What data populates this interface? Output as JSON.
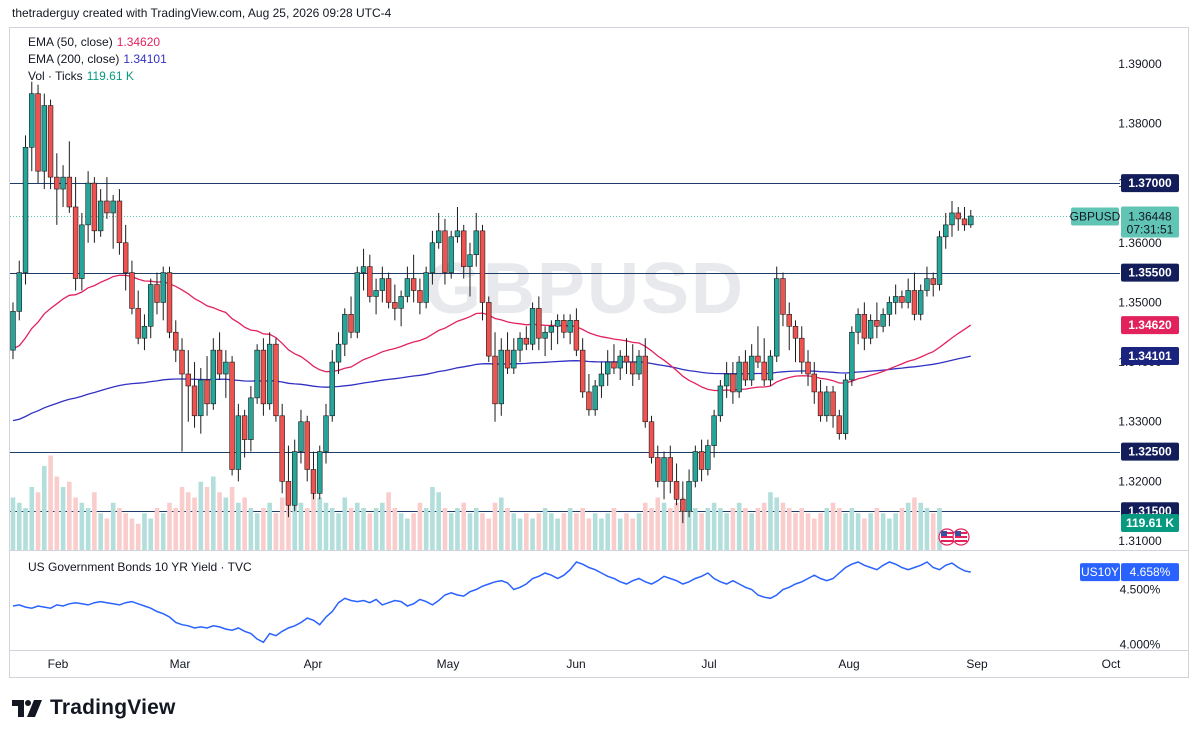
{
  "attribution": "thetraderguy created with TradingView.com, Aug 25, 2026 09:28 UTC-4",
  "watermark": "GBPUSD",
  "legend": {
    "ema50": {
      "label": "EMA (50, close)",
      "value": "1.34620",
      "color": "#e2225d"
    },
    "ema200": {
      "label": "EMA (200, close)",
      "value": "1.34101",
      "color": "#3131c4"
    },
    "vol": {
      "label": "Vol · Ticks",
      "value": "119.61 K",
      "color": "#089981"
    },
    "sub": {
      "label": "US Government Bonds 10 YR Yield · TVC"
    }
  },
  "badges": {
    "symbol": "GBPUSD",
    "last_price": "1.36448",
    "countdown": "07:31:51",
    "ema50": "1.34620",
    "ema200": "1.34101",
    "volume": "119.61 K",
    "us10y_symbol": "US10Y",
    "us10y_value": "4.658%"
  },
  "footer": {
    "brand": "TradingView"
  },
  "colors": {
    "up": "#26a69a",
    "down": "#ef5350",
    "up_vol": "#b2dfdb",
    "down_vol": "#facdcd",
    "ema50": "#e2225d",
    "ema200": "#3131c4",
    "yield": "#2962ff",
    "hline": "#1e3d6b",
    "badge_dark": "#131d5a",
    "badge_ema50": "#e2225d",
    "badge_ema200": "#1a237e",
    "badge_green": "#089981",
    "badge_price": "#60c5b5",
    "badge_us10y": "#2962ff"
  },
  "chart_data": [
    {
      "type": "candlestick",
      "symbol": "GBPUSD",
      "price_axis_ticks": [
        "1.39000",
        "1.38000",
        "1.37000",
        "1.36000",
        "1.35000",
        "1.34000",
        "1.33000",
        "1.32000",
        "1.31000"
      ],
      "ylim": [
        1.3085,
        1.396
      ],
      "x_ticks": [
        "Feb",
        "Mar",
        "Apr",
        "May",
        "Jun",
        "Jul",
        "Aug",
        "Sep",
        "Oct"
      ],
      "horizontal_levels": [
        "1.37000",
        "1.35500",
        "1.32500",
        "1.31500"
      ],
      "last_price": 1.36448,
      "ema50_last": 1.3462,
      "ema200_last": 1.34101,
      "volume_last": "119.61 K",
      "candles": [
        [
          1.342,
          1.35,
          1.3405,
          1.3485
        ],
        [
          1.3485,
          1.357,
          1.347,
          1.355
        ],
        [
          1.355,
          1.378,
          1.353,
          1.376
        ],
        [
          1.376,
          1.387,
          1.372,
          1.385
        ],
        [
          1.385,
          1.3865,
          1.37,
          1.372
        ],
        [
          1.372,
          1.385,
          1.369,
          1.383
        ],
        [
          1.383,
          1.384,
          1.369,
          1.371
        ],
        [
          1.371,
          1.375,
          1.363,
          1.369
        ],
        [
          1.369,
          1.373,
          1.366,
          1.371
        ],
        [
          1.371,
          1.377,
          1.365,
          1.366
        ],
        [
          1.366,
          1.371,
          1.352,
          1.354
        ],
        [
          1.354,
          1.365,
          1.352,
          1.363
        ],
        [
          1.363,
          1.372,
          1.36,
          1.37
        ],
        [
          1.37,
          1.371,
          1.36,
          1.362
        ],
        [
          1.362,
          1.369,
          1.361,
          1.367
        ],
        [
          1.367,
          1.371,
          1.364,
          1.365
        ],
        [
          1.365,
          1.368,
          1.359,
          1.367
        ],
        [
          1.367,
          1.369,
          1.358,
          1.36
        ],
        [
          1.36,
          1.363,
          1.352,
          1.355
        ],
        [
          1.355,
          1.357,
          1.348,
          1.349
        ],
        [
          1.349,
          1.352,
          1.343,
          1.344
        ],
        [
          1.344,
          1.348,
          1.342,
          1.346
        ],
        [
          1.346,
          1.354,
          1.344,
          1.353
        ],
        [
          1.353,
          1.355,
          1.348,
          1.35
        ],
        [
          1.35,
          1.356,
          1.347,
          1.355
        ],
        [
          1.355,
          1.356,
          1.344,
          1.345
        ],
        [
          1.345,
          1.347,
          1.34,
          1.342
        ],
        [
          1.342,
          1.344,
          1.325,
          1.338
        ],
        [
          1.338,
          1.342,
          1.33,
          1.336
        ],
        [
          1.336,
          1.34,
          1.329,
          1.331
        ],
        [
          1.331,
          1.339,
          1.328,
          1.337
        ],
        [
          1.337,
          1.341,
          1.331,
          1.333
        ],
        [
          1.333,
          1.344,
          1.332,
          1.342
        ],
        [
          1.342,
          1.345,
          1.337,
          1.338
        ],
        [
          1.338,
          1.342,
          1.334,
          1.34
        ],
        [
          1.34,
          1.341,
          1.321,
          1.322
        ],
        [
          1.322,
          1.333,
          1.32,
          1.331
        ],
        [
          1.331,
          1.332,
          1.324,
          1.327
        ],
        [
          1.327,
          1.336,
          1.325,
          1.334
        ],
        [
          1.334,
          1.343,
          1.333,
          1.342
        ],
        [
          1.342,
          1.344,
          1.331,
          1.333
        ],
        [
          1.333,
          1.345,
          1.332,
          1.343
        ],
        [
          1.343,
          1.344,
          1.33,
          1.331
        ],
        [
          1.331,
          1.333,
          1.318,
          1.32
        ],
        [
          1.32,
          1.326,
          1.314,
          1.316
        ],
        [
          1.316,
          1.327,
          1.315,
          1.325
        ],
        [
          1.325,
          1.332,
          1.323,
          1.33
        ],
        [
          1.33,
          1.331,
          1.32,
          1.322
        ],
        [
          1.322,
          1.325,
          1.317,
          1.318
        ],
        [
          1.318,
          1.326,
          1.317,
          1.325
        ],
        [
          1.325,
          1.333,
          1.323,
          1.331
        ],
        [
          1.331,
          1.342,
          1.33,
          1.34
        ],
        [
          1.34,
          1.345,
          1.338,
          1.343
        ],
        [
          1.343,
          1.349,
          1.341,
          1.348
        ],
        [
          1.348,
          1.351,
          1.344,
          1.345
        ],
        [
          1.345,
          1.356,
          1.344,
          1.355
        ],
        [
          1.355,
          1.359,
          1.352,
          1.356
        ],
        [
          1.356,
          1.358,
          1.35,
          1.351
        ],
        [
          1.351,
          1.354,
          1.348,
          1.352
        ],
        [
          1.352,
          1.356,
          1.35,
          1.354
        ],
        [
          1.354,
          1.355,
          1.349,
          1.35
        ],
        [
          1.35,
          1.353,
          1.347,
          1.349
        ],
        [
          1.349,
          1.352,
          1.346,
          1.351
        ],
        [
          1.351,
          1.356,
          1.35,
          1.354
        ],
        [
          1.354,
          1.358,
          1.35,
          1.352
        ],
        [
          1.352,
          1.354,
          1.348,
          1.35
        ],
        [
          1.35,
          1.356,
          1.349,
          1.355
        ],
        [
          1.355,
          1.362,
          1.353,
          1.36
        ],
        [
          1.36,
          1.365,
          1.359,
          1.362
        ],
        [
          1.362,
          1.364,
          1.353,
          1.355
        ],
        [
          1.355,
          1.362,
          1.354,
          1.361
        ],
        [
          1.361,
          1.366,
          1.36,
          1.362
        ],
        [
          1.362,
          1.363,
          1.354,
          1.356
        ],
        [
          1.356,
          1.36,
          1.351,
          1.358
        ],
        [
          1.358,
          1.365,
          1.356,
          1.362
        ],
        [
          1.362,
          1.363,
          1.347,
          1.35
        ],
        [
          1.35,
          1.351,
          1.34,
          1.341
        ],
        [
          1.341,
          1.345,
          1.33,
          1.333
        ],
        [
          1.333,
          1.344,
          1.331,
          1.342
        ],
        [
          1.342,
          1.345,
          1.338,
          1.339
        ],
        [
          1.339,
          1.344,
          1.338,
          1.342
        ],
        [
          1.342,
          1.345,
          1.34,
          1.344
        ],
        [
          1.344,
          1.346,
          1.342,
          1.343
        ],
        [
          1.343,
          1.35,
          1.342,
          1.349
        ],
        [
          1.349,
          1.351,
          1.342,
          1.344
        ],
        [
          1.344,
          1.346,
          1.341,
          1.345
        ],
        [
          1.345,
          1.347,
          1.342,
          1.346
        ],
        [
          1.346,
          1.348,
          1.343,
          1.347
        ],
        [
          1.347,
          1.348,
          1.344,
          1.345
        ],
        [
          1.345,
          1.348,
          1.343,
          1.347
        ],
        [
          1.347,
          1.349,
          1.341,
          1.342
        ],
        [
          1.342,
          1.344,
          1.334,
          1.335
        ],
        [
          1.335,
          1.338,
          1.331,
          1.332
        ],
        [
          1.332,
          1.337,
          1.331,
          1.336
        ],
        [
          1.336,
          1.34,
          1.334,
          1.338
        ],
        [
          1.338,
          1.342,
          1.336,
          1.34
        ],
        [
          1.34,
          1.343,
          1.338,
          1.339
        ],
        [
          1.339,
          1.342,
          1.337,
          1.341
        ],
        [
          1.341,
          1.344,
          1.338,
          1.34
        ],
        [
          1.34,
          1.343,
          1.336,
          1.338
        ],
        [
          1.338,
          1.342,
          1.337,
          1.341
        ],
        [
          1.341,
          1.344,
          1.329,
          1.33
        ],
        [
          1.33,
          1.331,
          1.323,
          1.324
        ],
        [
          1.324,
          1.326,
          1.319,
          1.32
        ],
        [
          1.32,
          1.325,
          1.317,
          1.324
        ],
        [
          1.324,
          1.326,
          1.318,
          1.32
        ],
        [
          1.32,
          1.323,
          1.316,
          1.317
        ],
        [
          1.317,
          1.32,
          1.313,
          1.315
        ],
        [
          1.315,
          1.322,
          1.314,
          1.32
        ],
        [
          1.32,
          1.326,
          1.319,
          1.325
        ],
        [
          1.325,
          1.327,
          1.32,
          1.322
        ],
        [
          1.322,
          1.327,
          1.321,
          1.326
        ],
        [
          1.326,
          1.332,
          1.324,
          1.331
        ],
        [
          1.331,
          1.337,
          1.33,
          1.336
        ],
        [
          1.336,
          1.34,
          1.334,
          1.338
        ],
        [
          1.338,
          1.34,
          1.333,
          1.335
        ],
        [
          1.335,
          1.341,
          1.334,
          1.34
        ],
        [
          1.34,
          1.342,
          1.336,
          1.337
        ],
        [
          1.337,
          1.343,
          1.336,
          1.341
        ],
        [
          1.341,
          1.346,
          1.339,
          1.34
        ],
        [
          1.34,
          1.344,
          1.336,
          1.337
        ],
        [
          1.337,
          1.342,
          1.336,
          1.341
        ],
        [
          1.341,
          1.356,
          1.34,
          1.354
        ],
        [
          1.354,
          1.355,
          1.346,
          1.348
        ],
        [
          1.348,
          1.35,
          1.342,
          1.346
        ],
        [
          1.346,
          1.347,
          1.34,
          1.344
        ],
        [
          1.344,
          1.346,
          1.338,
          1.34
        ],
        [
          1.34,
          1.342,
          1.336,
          1.338
        ],
        [
          1.338,
          1.34,
          1.333,
          1.335
        ],
        [
          1.335,
          1.337,
          1.33,
          1.331
        ],
        [
          1.331,
          1.336,
          1.33,
          1.335
        ],
        [
          1.335,
          1.336,
          1.329,
          1.331
        ],
        [
          1.331,
          1.332,
          1.327,
          1.328
        ],
        [
          1.328,
          1.338,
          1.327,
          1.337
        ],
        [
          1.337,
          1.346,
          1.336,
          1.345
        ],
        [
          1.345,
          1.349,
          1.343,
          1.348
        ],
        [
          1.348,
          1.35,
          1.342,
          1.344
        ],
        [
          1.344,
          1.348,
          1.343,
          1.347
        ],
        [
          1.347,
          1.35,
          1.344,
          1.346
        ],
        [
          1.346,
          1.349,
          1.345,
          1.348
        ],
        [
          1.348,
          1.351,
          1.346,
          1.35
        ],
        [
          1.35,
          1.353,
          1.348,
          1.351
        ],
        [
          1.351,
          1.352,
          1.349,
          1.35
        ],
        [
          1.35,
          1.354,
          1.349,
          1.352
        ],
        [
          1.352,
          1.355,
          1.347,
          1.348
        ],
        [
          1.348,
          1.353,
          1.347,
          1.352
        ],
        [
          1.352,
          1.356,
          1.351,
          1.354
        ],
        [
          1.354,
          1.355,
          1.351,
          1.353
        ],
        [
          1.353,
          1.362,
          1.352,
          1.361
        ],
        [
          1.361,
          1.365,
          1.359,
          1.363
        ],
        [
          1.363,
          1.367,
          1.361,
          1.365
        ],
        [
          1.365,
          1.366,
          1.362,
          1.364
        ],
        [
          1.364,
          1.366,
          1.362,
          1.363
        ],
        [
          1.363,
          1.3655,
          1.3625,
          1.36448
        ]
      ],
      "volume": [
        0.5,
        0.45,
        0.4,
        0.6,
        0.55,
        0.8,
        0.9,
        0.7,
        0.6,
        0.65,
        0.5,
        0.45,
        0.4,
        0.55,
        0.35,
        0.3,
        0.45,
        0.4,
        0.35,
        0.3,
        0.25,
        0.35,
        0.3,
        0.4,
        0.35,
        0.45,
        0.4,
        0.6,
        0.55,
        0.5,
        0.65,
        0.6,
        0.7,
        0.55,
        0.5,
        0.6,
        0.45,
        0.5,
        0.4,
        0.35,
        0.4,
        0.45,
        0.35,
        0.5,
        0.6,
        0.55,
        0.45,
        0.4,
        0.6,
        0.5,
        0.45,
        0.4,
        0.35,
        0.5,
        0.4,
        0.45,
        0.4,
        0.35,
        0.4,
        0.45,
        0.55,
        0.4,
        0.35,
        0.3,
        0.35,
        0.45,
        0.4,
        0.6,
        0.55,
        0.4,
        0.35,
        0.4,
        0.45,
        0.35,
        0.4,
        0.35,
        0.3,
        0.45,
        0.5,
        0.4,
        0.35,
        0.3,
        0.35,
        0.3,
        0.35,
        0.4,
        0.35,
        0.3,
        0.35,
        0.4,
        0.35,
        0.4,
        0.3,
        0.35,
        0.3,
        0.35,
        0.4,
        0.3,
        0.35,
        0.3,
        0.35,
        0.45,
        0.4,
        0.5,
        0.45,
        0.4,
        0.45,
        0.5,
        0.55,
        0.4,
        0.35,
        0.4,
        0.45,
        0.4,
        0.35,
        0.4,
        0.45,
        0.4,
        0.35,
        0.4,
        0.45,
        0.55,
        0.5,
        0.45,
        0.4,
        0.35,
        0.4,
        0.35,
        0.3,
        0.35,
        0.4,
        0.45,
        0.4,
        0.35,
        0.4,
        0.35,
        0.3,
        0.35,
        0.4,
        0.35,
        0.3,
        0.35,
        0.4,
        0.45,
        0.5,
        0.45,
        0.4,
        0.35,
        0.4
      ]
    },
    {
      "type": "line",
      "title": "US Government Bonds 10 YR Yield · TVC",
      "symbol": "US10Y",
      "axis_ticks": [
        "4.500%",
        "4.000%"
      ],
      "last_value": 4.658,
      "values": [
        4.35,
        4.36,
        4.34,
        4.33,
        4.35,
        4.34,
        4.33,
        4.36,
        4.35,
        4.37,
        4.38,
        4.37,
        4.36,
        4.38,
        4.39,
        4.38,
        4.37,
        4.36,
        4.38,
        4.39,
        4.37,
        4.35,
        4.33,
        4.3,
        4.28,
        4.25,
        4.2,
        4.18,
        4.17,
        4.15,
        4.16,
        4.15,
        4.17,
        4.16,
        4.14,
        4.13,
        4.15,
        4.12,
        4.1,
        4.05,
        4.02,
        4.1,
        4.08,
        4.12,
        4.15,
        4.17,
        4.2,
        4.24,
        4.22,
        4.18,
        4.25,
        4.3,
        4.38,
        4.42,
        4.4,
        4.39,
        4.4,
        4.38,
        4.41,
        4.36,
        4.38,
        4.4,
        4.39,
        4.35,
        4.37,
        4.41,
        4.39,
        4.36,
        4.4,
        4.45,
        4.47,
        4.45,
        4.44,
        4.48,
        4.5,
        4.53,
        4.55,
        4.57,
        4.58,
        4.56,
        4.5,
        4.52,
        4.55,
        4.6,
        4.62,
        4.65,
        4.63,
        4.6,
        4.63,
        4.68,
        4.75,
        4.73,
        4.7,
        4.68,
        4.65,
        4.62,
        4.6,
        4.57,
        4.55,
        4.58,
        4.6,
        4.57,
        4.55,
        4.58,
        4.62,
        4.6,
        4.58,
        4.55,
        4.57,
        4.6,
        4.62,
        4.65,
        4.6,
        4.57,
        4.55,
        4.58,
        4.55,
        4.52,
        4.5,
        4.45,
        4.43,
        4.42,
        4.45,
        4.5,
        4.52,
        4.55,
        4.57,
        4.6,
        4.63,
        4.6,
        4.58,
        4.6,
        4.65,
        4.7,
        4.73,
        4.75,
        4.72,
        4.7,
        4.68,
        4.72,
        4.75,
        4.73,
        4.7,
        4.68,
        4.7,
        4.72,
        4.75,
        4.7,
        4.68,
        4.72,
        4.74,
        4.7,
        4.67,
        4.658
      ]
    }
  ]
}
